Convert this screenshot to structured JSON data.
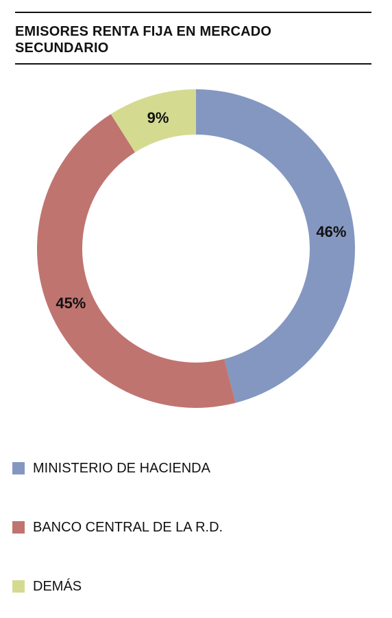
{
  "title": "EMISORES RENTA FIJA EN MERCADO SECUNDARIO",
  "chart_data": {
    "type": "pie",
    "variant": "donut",
    "title": "EMISORES RENTA FIJA EN MERCADO SECUNDARIO",
    "labels": [
      "MINISTERIO DE HACIENDA",
      "BANCO CENTRAL DE LA R.D.",
      "DEMÁS"
    ],
    "values": [
      46,
      45,
      9
    ],
    "value_labels": [
      "46%",
      "45%",
      "9%"
    ],
    "colors": [
      "#8497c1",
      "#c07470",
      "#d4db91"
    ],
    "legend_position": "bottom"
  },
  "legend": {
    "items": [
      {
        "label": "MINISTERIO DE HACIENDA",
        "color": "#8497c1"
      },
      {
        "label": "BANCO CENTRAL DE LA R.D.",
        "color": "#c07470"
      },
      {
        "label": "DEMÁS",
        "color": "#d4db91"
      }
    ]
  }
}
